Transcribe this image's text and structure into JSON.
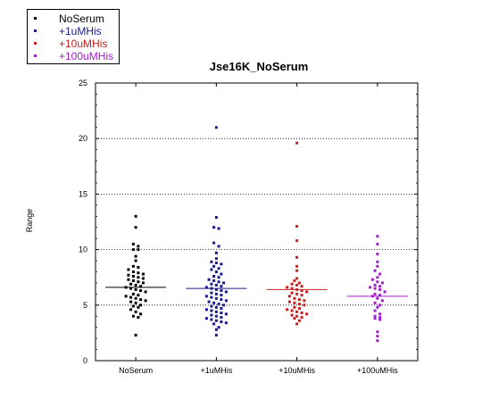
{
  "legend": [
    {
      "label": "NoSerum",
      "color": "#000000"
    },
    {
      "label": "+1uMHis",
      "color": "#1a1a8c"
    },
    {
      "label": "+10uMHis",
      "color": "#c81e1e"
    },
    {
      "label": "+100uMHis",
      "color": "#a020c8"
    }
  ],
  "chart_data": {
    "type": "scatter",
    "title": "Jse16K_NoSerum",
    "xlabel": "",
    "ylabel": "Range",
    "ylim": [
      0,
      25
    ],
    "yticks": [
      0,
      5,
      10,
      15,
      20,
      25
    ],
    "grid": "horizontal dotted",
    "legend_position": "top-left",
    "categories": [
      "NoSerum",
      "+1uMHis",
      "+10uMHis",
      "+100uMHis"
    ],
    "series": [
      {
        "name": "NoSerum",
        "color": "#000000",
        "mean": 6.6,
        "values": [
          13.0,
          12.0,
          10.5,
          10.3,
          10.0,
          10.0,
          9.4,
          9.0,
          8.5,
          8.4,
          8.2,
          8.0,
          7.9,
          7.8,
          7.7,
          7.6,
          7.5,
          7.4,
          7.3,
          7.2,
          7.1,
          7.0,
          6.9,
          6.8,
          6.7,
          6.6,
          6.5,
          6.4,
          6.3,
          6.2,
          6.0,
          5.9,
          5.8,
          5.7,
          5.6,
          5.5,
          5.4,
          5.3,
          5.2,
          5.0,
          4.9,
          4.8,
          4.6,
          4.4,
          4.2,
          4.0,
          3.9,
          2.3
        ]
      },
      {
        "name": "+1uMHis",
        "color": "#1a1a8c",
        "mean": 6.5,
        "values": [
          21.0,
          12.9,
          12.0,
          11.9,
          10.6,
          10.3,
          9.7,
          9.2,
          8.9,
          8.8,
          8.7,
          8.5,
          8.3,
          8.2,
          8.0,
          7.8,
          7.6,
          7.5,
          7.3,
          7.2,
          7.1,
          7.0,
          6.9,
          6.8,
          6.7,
          6.6,
          6.5,
          6.4,
          6.3,
          6.2,
          6.1,
          6.0,
          5.9,
          5.8,
          5.7,
          5.6,
          5.5,
          5.4,
          5.3,
          5.2,
          5.1,
          5.0,
          4.9,
          4.8,
          4.7,
          4.6,
          4.5,
          4.4,
          4.3,
          4.2,
          4.1,
          4.0,
          3.9,
          3.8,
          3.7,
          3.6,
          3.5,
          3.4,
          3.3,
          3.0,
          2.8,
          2.3
        ]
      },
      {
        "name": "+10uMHis",
        "color": "#c81e1e",
        "mean": 6.4,
        "values": [
          19.6,
          12.1,
          10.8,
          9.3,
          8.5,
          8.1,
          7.4,
          7.2,
          7.0,
          6.9,
          6.8,
          6.7,
          6.6,
          6.5,
          6.4,
          6.3,
          6.2,
          6.1,
          6.0,
          5.9,
          5.8,
          5.6,
          5.5,
          5.4,
          5.3,
          5.2,
          5.1,
          5.0,
          4.8,
          4.7,
          4.6,
          4.5,
          4.4,
          4.3,
          4.2,
          4.1,
          4.0,
          3.9,
          3.8,
          3.6,
          3.3
        ]
      },
      {
        "name": "+100uMHis",
        "color": "#a020c8",
        "mean": 5.8,
        "values": [
          11.2,
          10.5,
          9.6,
          8.9,
          8.5,
          8.1,
          7.8,
          7.5,
          7.3,
          7.1,
          7.0,
          6.8,
          6.7,
          6.6,
          6.5,
          6.4,
          6.2,
          6.0,
          5.9,
          5.8,
          5.6,
          5.4,
          5.2,
          5.0,
          4.8,
          4.5,
          4.2,
          4.0,
          3.9,
          3.8,
          3.7,
          2.6,
          2.2,
          1.8
        ]
      }
    ]
  }
}
